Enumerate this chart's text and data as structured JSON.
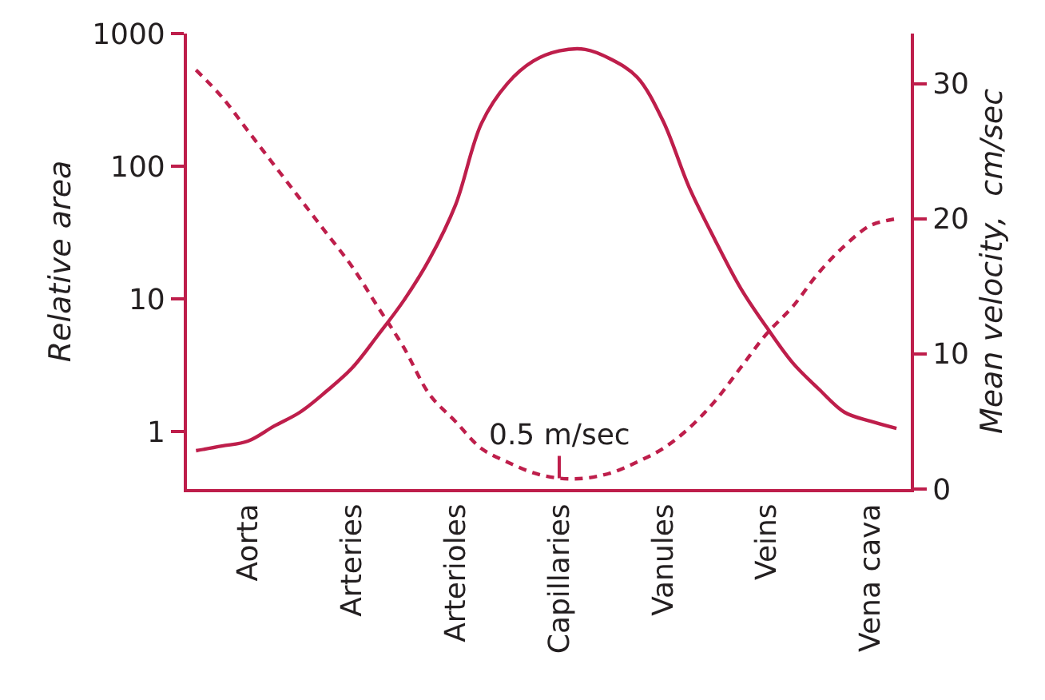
{
  "chart_data": {
    "type": "line",
    "categories": [
      null,
      null,
      "Aorta",
      null,
      null,
      null,
      "Arteries",
      null,
      null,
      null,
      "Arterioles",
      null,
      null,
      null,
      "Capillaries",
      null,
      null,
      null,
      "Vanules",
      null,
      null,
      null,
      "Veins",
      null,
      null,
      null,
      "Vena cava",
      null
    ],
    "ylabel": "Relative area",
    "y2label": "Mean velocity,  cm/sec",
    "log": "y",
    "ylim": [
      0.37,
      1000
    ],
    "yticks": [
      1,
      10,
      100,
      1000
    ],
    "y2lim": [
      0,
      33.7
    ],
    "y2ticks": [
      0,
      10,
      20,
      30
    ],
    "series": [
      {
        "color": "#be1e4b",
        "line_style": "solid",
        "values": [
          0.72,
          0.78,
          0.85,
          1.1,
          1.4,
          2.0,
          3.0,
          5.3,
          9.7,
          20,
          51,
          210,
          420,
          620,
          740,
          760,
          640,
          470,
          220,
          70,
          28,
          12,
          6.1,
          3.3,
          2.1,
          1.4,
          1.2,
          1.06
        ]
      },
      {
        "color": "#be1e4b",
        "line_style": "dashed",
        "axis": "y2",
        "values": [
          31,
          29,
          26.5,
          24,
          21.5,
          19,
          16.5,
          13.5,
          10.5,
          7,
          5,
          3,
          2,
          1.2,
          0.8,
          0.8,
          1.2,
          2,
          3,
          4.5,
          6.5,
          9,
          11.5,
          13.5,
          16,
          18,
          19.5,
          20
        ]
      }
    ],
    "annotations": [
      "0.5 m/sec"
    ]
  }
}
